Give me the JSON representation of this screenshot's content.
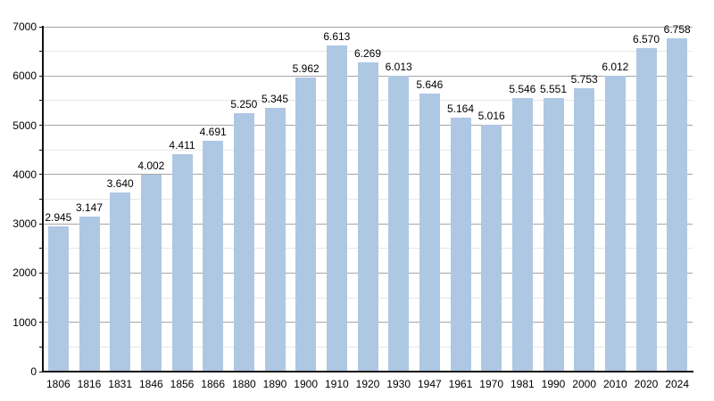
{
  "chart_data": {
    "type": "bar",
    "title": "",
    "xlabel": "",
    "ylabel": "",
    "categories": [
      "1806",
      "1816",
      "1831",
      "1846",
      "1856",
      "1866",
      "1880",
      "1890",
      "1900",
      "1910",
      "1920",
      "1930",
      "1947",
      "1961",
      "1970",
      "1981",
      "1990",
      "2000",
      "2010",
      "2020",
      "2024"
    ],
    "values": [
      2945,
      3147,
      3640,
      4002,
      4411,
      4691,
      5250,
      5345,
      5962,
      6613,
      6269,
      6013,
      5646,
      5164,
      5016,
      5546,
      5551,
      5753,
      6012,
      6570,
      6758
    ],
    "value_labels": [
      "2.945",
      "3.147",
      "3.640",
      "4.002",
      "4.411",
      "4.691",
      "5.250",
      "5.345",
      "5.962",
      "6.613",
      "6.269",
      "6.013",
      "5.646",
      "5.164",
      "5.016",
      "5.546",
      "5.551",
      "5.753",
      "6.012",
      "6.570",
      "6.758"
    ],
    "ylim": [
      0,
      7000
    ],
    "y_major_step": 1000,
    "y_minor_step": 500,
    "y_tick_labels": [
      "0",
      "1000",
      "2000",
      "3000",
      "4000",
      "5000",
      "6000",
      "7000"
    ],
    "grid": "on",
    "legend_position": "none",
    "colors": {
      "bar": "#aec8e4",
      "grid_major": "#a6a6a6",
      "grid_minor": "#e7e7e7",
      "axis": "#111111",
      "text": "#000000",
      "background": "#ffffff"
    }
  }
}
